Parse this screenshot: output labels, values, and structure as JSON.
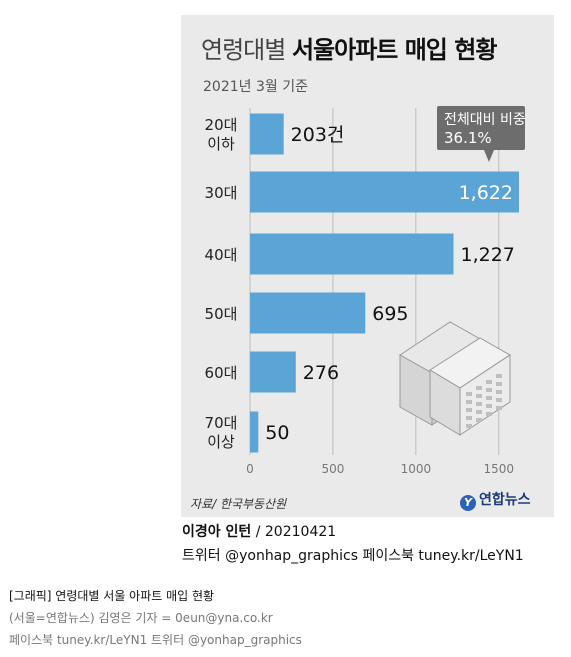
{
  "header": {
    "title_prefix": "연령대별",
    "title_main": "서울아파트 매입 현황",
    "subtitle": "2021년 3월 기준"
  },
  "callout": {
    "line1": "전체대비 비중",
    "line2": "36.1%"
  },
  "chart_data": {
    "type": "bar",
    "orientation": "horizontal",
    "categories": [
      "20대\n이하",
      "30대",
      "40대",
      "50대",
      "60대",
      "70대\n이상"
    ],
    "values": [
      203,
      1622,
      1227,
      695,
      276,
      50
    ],
    "value_labels": [
      "203건",
      "1,622",
      "1,227",
      "695",
      "276",
      "50"
    ],
    "x_ticks": [
      "0",
      "500",
      "1000",
      "1500"
    ],
    "xlim": [
      0,
      1650
    ],
    "bar_color": "#5aa5d6",
    "grid": true
  },
  "footer": {
    "source": "자료/ 한국부동산원",
    "logo_text": "연합뉴스",
    "author": "이경아 인턴",
    "date": "/ 20210421",
    "sns": "트위터 @yonhap_graphics  페이스북 tuney.kr/LeYN1"
  },
  "caption": {
    "line1": "[그래픽] 연령대별 서울 아파트 매입 현황",
    "line2": "(서울=연합뉴스) 김영은 기자 = 0eun@yna.co.kr",
    "line3": "페이스북 tuney.kr/LeYN1 트위터 @yonhap_graphics"
  }
}
